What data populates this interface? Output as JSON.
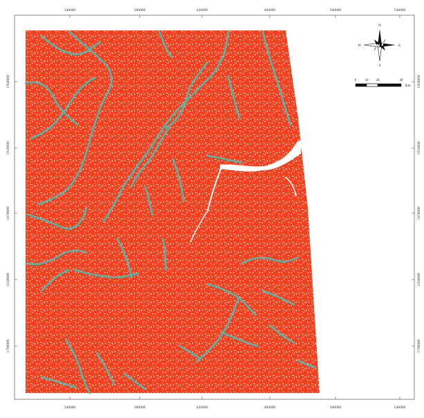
{
  "map": {
    "colors": {
      "land": "#f2401d",
      "river": "#4fb8ad",
      "frame": "#555555",
      "background": "#ffffff",
      "speckle": "#ffe8e0"
    },
    "x_ticks_top": [
      "340000",
      "380000",
      "420000",
      "460000",
      "500000",
      "540000"
    ],
    "x_ticks_bottom": [
      "340000",
      "380000",
      "420000",
      "460000",
      "500000",
      "540000"
    ],
    "y_ticks_left": [
      "1950000",
      "1910000",
      "1870000",
      "1830000",
      "1790000"
    ],
    "y_ticks_right": [
      "1950000",
      "1910000",
      "1870000",
      "1830000",
      "1790000"
    ],
    "compass": {
      "icon": "north-arrow-icon",
      "n": "N",
      "s": "S",
      "e": "E",
      "w": "W"
    },
    "scale_bar": {
      "labels": [
        "0",
        "10",
        "20",
        "",
        "40"
      ],
      "unit": "Km"
    }
  }
}
